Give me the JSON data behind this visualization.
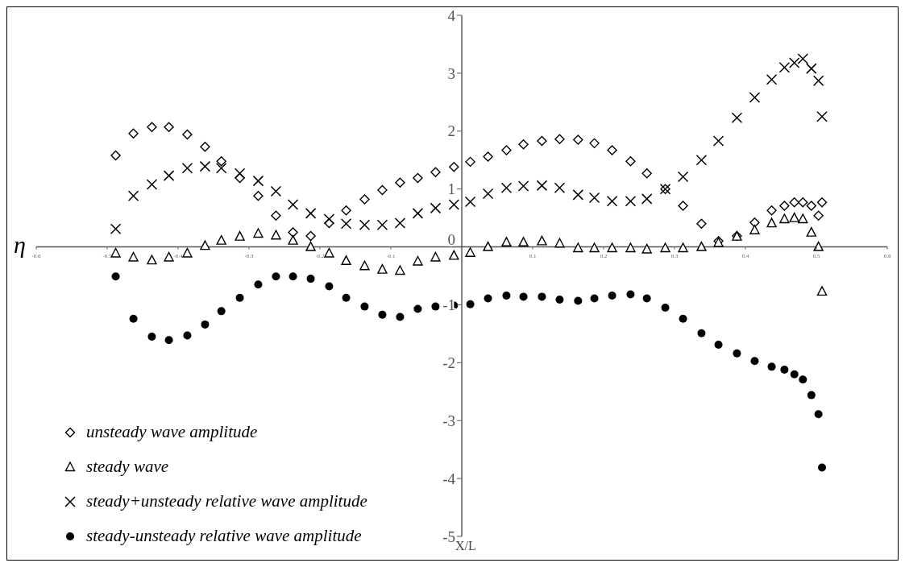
{
  "chart_data": {
    "type": "scatter",
    "xlabel": "X/L",
    "ylabel": "η",
    "x": [
      -0.488,
      -0.463,
      -0.437,
      -0.413,
      -0.387,
      -0.362,
      -0.339,
      -0.313,
      -0.287,
      -0.262,
      -0.238,
      -0.213,
      -0.187,
      -0.163,
      -0.137,
      -0.112,
      -0.087,
      -0.062,
      -0.037,
      -0.011,
      0.012,
      0.037,
      0.063,
      0.087,
      0.113,
      0.138,
      0.164,
      0.187,
      0.212,
      0.238,
      0.261,
      0.287,
      0.312,
      0.338,
      0.362,
      0.388,
      0.413,
      0.437,
      0.455,
      0.469,
      0.481,
      0.493,
      0.503,
      0.508
    ],
    "series": [
      {
        "name": "unsteady wave amplitude",
        "color": "#000000",
        "marker": "diamond",
        "values": [
          1.58,
          1.96,
          2.07,
          2.07,
          1.94,
          1.73,
          1.48,
          1.19,
          0.88,
          0.54,
          0.25,
          0.19,
          0.41,
          0.63,
          0.82,
          0.98,
          1.11,
          1.19,
          1.29,
          1.38,
          1.47,
          1.56,
          1.67,
          1.77,
          1.83,
          1.86,
          1.85,
          1.79,
          1.67,
          1.48,
          1.27,
          1.0,
          0.71,
          0.4,
          0.1,
          0.19,
          0.42,
          0.63,
          0.71,
          0.77,
          0.77,
          0.71,
          0.54,
          0.77
        ]
      },
      {
        "name": "steady wave",
        "color": "#000000",
        "marker": "triangle",
        "values": [
          -0.11,
          -0.18,
          -0.23,
          -0.18,
          -0.11,
          0.02,
          0.11,
          0.18,
          0.23,
          0.2,
          0.11,
          0.0,
          -0.11,
          -0.24,
          -0.33,
          -0.39,
          -0.41,
          -0.25,
          -0.18,
          -0.15,
          -0.1,
          0.0,
          0.08,
          0.08,
          0.1,
          0.06,
          -0.02,
          -0.02,
          -0.02,
          -0.02,
          -0.04,
          -0.02,
          -0.02,
          0.0,
          0.07,
          0.18,
          0.29,
          0.41,
          0.48,
          0.5,
          0.48,
          0.25,
          0.0,
          -0.77
        ]
      },
      {
        "name": "steady+unsteady relative wave amplitude",
        "color": "#000000",
        "marker": "cross",
        "values": [
          0.31,
          0.88,
          1.08,
          1.23,
          1.36,
          1.39,
          1.36,
          1.27,
          1.14,
          0.96,
          0.73,
          0.58,
          0.48,
          0.4,
          0.38,
          0.38,
          0.41,
          0.58,
          0.67,
          0.73,
          0.78,
          0.92,
          1.02,
          1.05,
          1.06,
          1.02,
          0.9,
          0.85,
          0.79,
          0.79,
          0.83,
          1.0,
          1.21,
          1.5,
          1.83,
          2.23,
          2.58,
          2.89,
          3.1,
          3.18,
          3.25,
          3.08,
          2.87,
          2.25
        ]
      },
      {
        "name": "steady-unsteady relative wave amplitude",
        "color": "#000000",
        "marker": "circle",
        "values": [
          -0.51,
          -1.24,
          -1.55,
          -1.61,
          -1.53,
          -1.34,
          -1.11,
          -0.88,
          -0.65,
          -0.51,
          -0.51,
          -0.55,
          -0.68,
          -0.88,
          -1.03,
          -1.17,
          -1.21,
          -1.07,
          -1.03,
          -1.01,
          -0.99,
          -0.89,
          -0.84,
          -0.86,
          -0.86,
          -0.91,
          -0.93,
          -0.89,
          -0.84,
          -0.82,
          -0.89,
          -1.05,
          -1.24,
          -1.49,
          -1.69,
          -1.84,
          -1.97,
          -2.07,
          -2.12,
          -2.2,
          -2.29,
          -2.56,
          -2.89,
          -3.81
        ]
      }
    ],
    "xlim": [
      -0.6,
      0.6
    ],
    "xticks": [
      -0.6,
      -0.5,
      -0.4,
      -0.3,
      -0.2,
      -0.1,
      0.1,
      0.2,
      0.3,
      0.4,
      0.5,
      0.6
    ],
    "ylim": [
      -5,
      4
    ],
    "yticks": [
      -5,
      -4,
      -3,
      -2,
      -1,
      0,
      1,
      2,
      3,
      4
    ],
    "grid": false,
    "legend": "bottom left"
  }
}
